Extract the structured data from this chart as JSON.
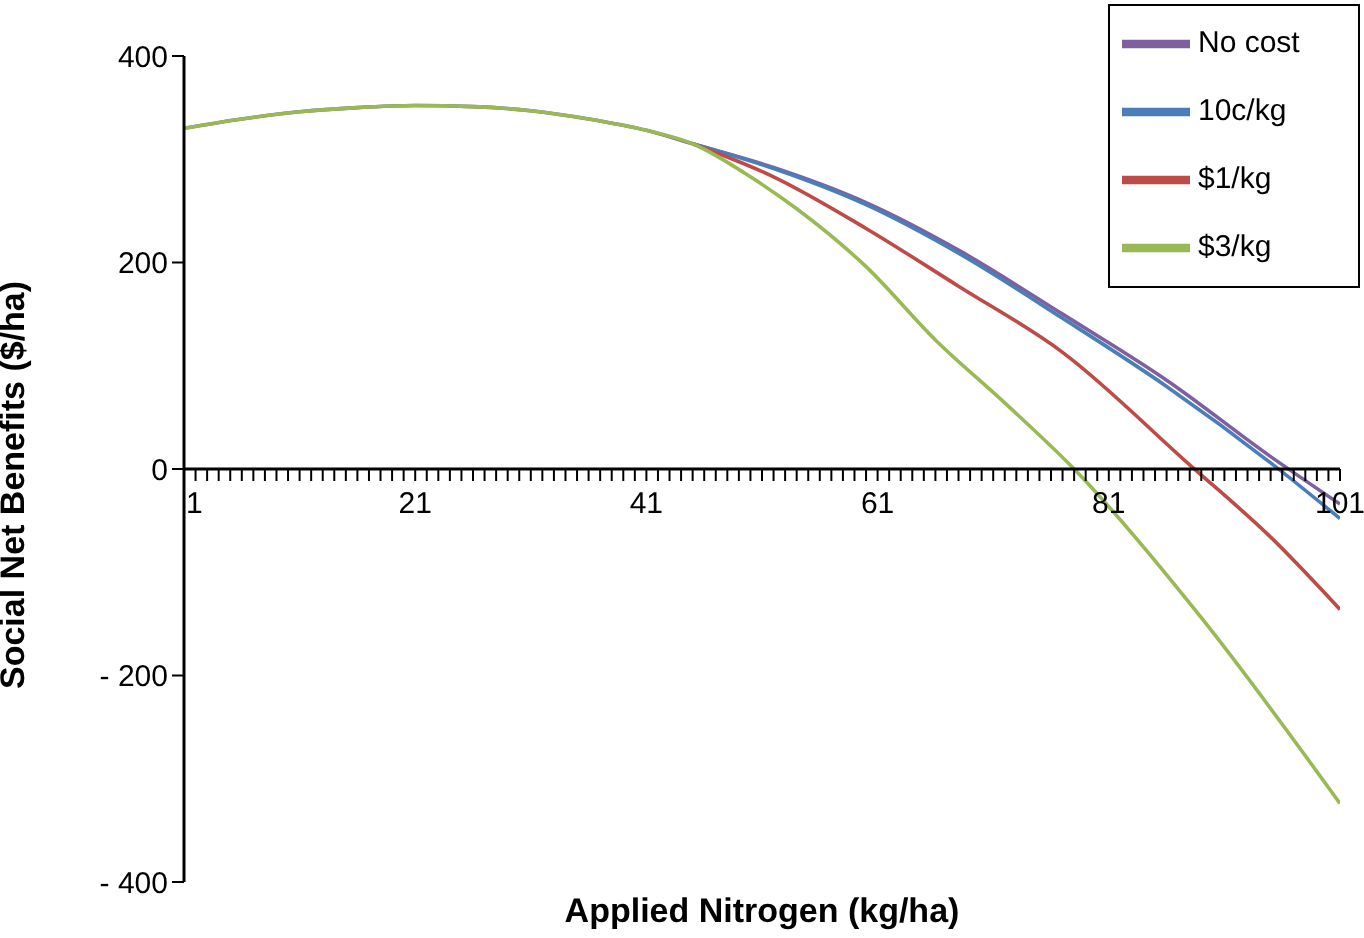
{
  "chart_data": {
    "type": "line",
    "xlabel": "Applied Nitrogen (kg/ha)",
    "ylabel": "Social Net Benefits ($/ha)",
    "xlim": [
      1,
      101
    ],
    "ylim": [
      -400,
      400
    ],
    "xticks": [
      1,
      {
        "value": 2,
        "label": null
      },
      {
        "value": 3,
        "label": null
      },
      {
        "value": 4,
        "label": null
      },
      {
        "value": 5,
        "label": null
      },
      {
        "value": 6,
        "label": null
      },
      {
        "value": 7,
        "label": null
      },
      {
        "value": 8,
        "label": null
      },
      {
        "value": 9,
        "label": null
      },
      {
        "value": 10,
        "label": null
      },
      {
        "value": 11,
        "label": null
      },
      {
        "value": 12,
        "label": null
      },
      {
        "value": 13,
        "label": null
      },
      {
        "value": 14,
        "label": null
      },
      {
        "value": 15,
        "label": null
      },
      {
        "value": 16,
        "label": null
      },
      {
        "value": 17,
        "label": null
      },
      {
        "value": 18,
        "label": null
      },
      {
        "value": 19,
        "label": null
      },
      {
        "value": 20,
        "label": null
      },
      21,
      {
        "value": 22,
        "label": null
      },
      {
        "value": 23,
        "label": null
      },
      {
        "value": 24,
        "label": null
      },
      {
        "value": 25,
        "label": null
      },
      {
        "value": 26,
        "label": null
      },
      {
        "value": 27,
        "label": null
      },
      {
        "value": 28,
        "label": null
      },
      {
        "value": 29,
        "label": null
      },
      {
        "value": 30,
        "label": null
      },
      {
        "value": 31,
        "label": null
      },
      {
        "value": 32,
        "label": null
      },
      {
        "value": 33,
        "label": null
      },
      {
        "value": 34,
        "label": null
      },
      {
        "value": 35,
        "label": null
      },
      {
        "value": 36,
        "label": null
      },
      {
        "value": 37,
        "label": null
      },
      {
        "value": 38,
        "label": null
      },
      {
        "value": 39,
        "label": null
      },
      {
        "value": 40,
        "label": null
      },
      41,
      {
        "value": 42,
        "label": null
      },
      {
        "value": 43,
        "label": null
      },
      {
        "value": 44,
        "label": null
      },
      {
        "value": 45,
        "label": null
      },
      {
        "value": 46,
        "label": null
      },
      {
        "value": 47,
        "label": null
      },
      {
        "value": 48,
        "label": null
      },
      {
        "value": 49,
        "label": null
      },
      {
        "value": 50,
        "label": null
      },
      {
        "value": 51,
        "label": null
      },
      {
        "value": 52,
        "label": null
      },
      {
        "value": 53,
        "label": null
      },
      {
        "value": 54,
        "label": null
      },
      {
        "value": 55,
        "label": null
      },
      {
        "value": 56,
        "label": null
      },
      {
        "value": 57,
        "label": null
      },
      {
        "value": 58,
        "label": null
      },
      {
        "value": 59,
        "label": null
      },
      {
        "value": 60,
        "label": null
      },
      61,
      {
        "value": 62,
        "label": null
      },
      {
        "value": 63,
        "label": null
      },
      {
        "value": 64,
        "label": null
      },
      {
        "value": 65,
        "label": null
      },
      {
        "value": 66,
        "label": null
      },
      {
        "value": 67,
        "label": null
      },
      {
        "value": 68,
        "label": null
      },
      {
        "value": 69,
        "label": null
      },
      {
        "value": 70,
        "label": null
      },
      {
        "value": 71,
        "label": null
      },
      {
        "value": 72,
        "label": null
      },
      {
        "value": 73,
        "label": null
      },
      {
        "value": 74,
        "label": null
      },
      {
        "value": 75,
        "label": null
      },
      {
        "value": 76,
        "label": null
      },
      {
        "value": 77,
        "label": null
      },
      {
        "value": 78,
        "label": null
      },
      {
        "value": 79,
        "label": null
      },
      {
        "value": 80,
        "label": null
      },
      81,
      {
        "value": 82,
        "label": null
      },
      {
        "value": 83,
        "label": null
      },
      {
        "value": 84,
        "label": null
      },
      {
        "value": 85,
        "label": null
      },
      {
        "value": 86,
        "label": null
      },
      {
        "value": 87,
        "label": null
      },
      {
        "value": 88,
        "label": null
      },
      {
        "value": 89,
        "label": null
      },
      {
        "value": 90,
        "label": null
      },
      {
        "value": 91,
        "label": null
      },
      {
        "value": 92,
        "label": null
      },
      {
        "value": 93,
        "label": null
      },
      {
        "value": 94,
        "label": null
      },
      {
        "value": 95,
        "label": null
      },
      {
        "value": 96,
        "label": null
      },
      {
        "value": 97,
        "label": null
      },
      {
        "value": 98,
        "label": null
      },
      {
        "value": 99,
        "label": null
      },
      {
        "value": 100,
        "label": null
      },
      101
    ],
    "yticks": [
      {
        "value": -400,
        "label": "- 400"
      },
      {
        "value": -200,
        "label": "- 200"
      },
      0,
      200,
      400
    ],
    "grid": false,
    "legend": "top right",
    "marker": "none",
    "line_style": "solid",
    "series": [
      {
        "name": "No cost",
        "color": "#7e60a0",
        "x": [
          1,
          6,
          11,
          16,
          21,
          26,
          31,
          36,
          41,
          45,
          52,
          60,
          68,
          77,
          86,
          95,
          101
        ],
        "values": [
          330,
          339,
          346,
          350,
          352,
          351,
          347,
          339,
          328,
          315,
          292,
          258,
          212,
          150,
          86,
          12,
          -34
        ]
      },
      {
        "name": "10c/kg",
        "color": "#4a7ebb",
        "x": [
          45,
          52,
          60,
          68,
          77,
          86,
          95,
          101
        ],
        "values": [
          315,
          291,
          256,
          209,
          146,
          80,
          6,
          -48
        ]
      },
      {
        "name": "$1/kg",
        "color": "#be4b48",
        "x": [
          45,
          52,
          60,
          68,
          77,
          88,
          95,
          101
        ],
        "values": [
          315,
          283,
          233,
          177,
          113,
          4,
          -66,
          -136
        ]
      },
      {
        "name": "$3/kg",
        "color": "#98b954",
        "x": [
          1,
          6,
          11,
          16,
          21,
          26,
          31,
          36,
          41,
          45,
          50,
          54,
          60,
          66,
          72,
          78,
          89,
          101
        ],
        "values": [
          330,
          339,
          346,
          350,
          352,
          351,
          347,
          339,
          328,
          315,
          283,
          252,
          196,
          125,
          64,
          0,
          -144,
          -324
        ]
      }
    ]
  }
}
